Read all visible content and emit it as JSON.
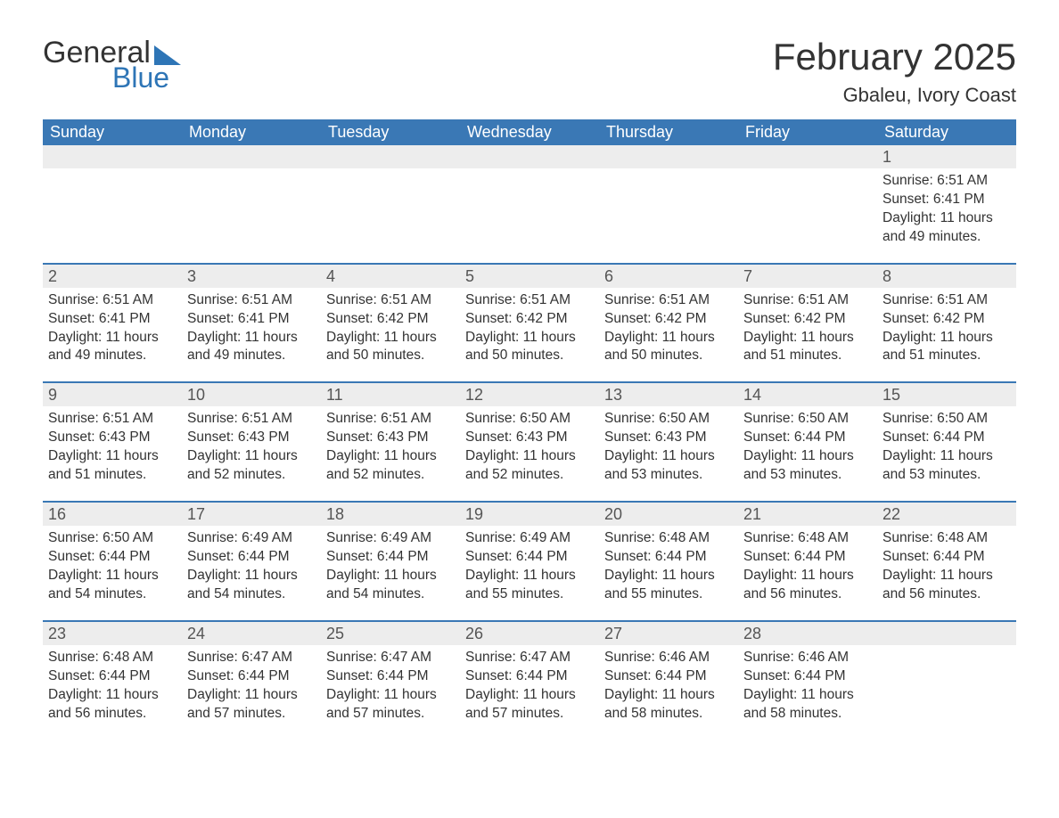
{
  "brand": {
    "word1": "General",
    "word2": "Blue"
  },
  "title": "February 2025",
  "location": "Gbaleu, Ivory Coast",
  "colors": {
    "header_bg": "#3a78b5",
    "header_text": "#ffffff",
    "daynum_bg": "#ededed",
    "accent": "#2e75b6",
    "text": "#333333",
    "page_bg": "#ffffff"
  },
  "typography": {
    "title_fontsize": 42,
    "location_fontsize": 22,
    "header_fontsize": 18,
    "daynum_fontsize": 18,
    "body_fontsize": 15.5
  },
  "layout": {
    "columns": 7,
    "first_day_index": 6
  },
  "day_names": [
    "Sunday",
    "Monday",
    "Tuesday",
    "Wednesday",
    "Thursday",
    "Friday",
    "Saturday"
  ],
  "weeks": [
    [
      {
        "empty": true
      },
      {
        "empty": true
      },
      {
        "empty": true
      },
      {
        "empty": true
      },
      {
        "empty": true
      },
      {
        "empty": true
      },
      {
        "day": "1",
        "sunrise": "Sunrise: 6:51 AM",
        "sunset": "Sunset: 6:41 PM",
        "daylight": "Daylight: 11 hours and 49 minutes."
      }
    ],
    [
      {
        "day": "2",
        "sunrise": "Sunrise: 6:51 AM",
        "sunset": "Sunset: 6:41 PM",
        "daylight": "Daylight: 11 hours and 49 minutes."
      },
      {
        "day": "3",
        "sunrise": "Sunrise: 6:51 AM",
        "sunset": "Sunset: 6:41 PM",
        "daylight": "Daylight: 11 hours and 49 minutes."
      },
      {
        "day": "4",
        "sunrise": "Sunrise: 6:51 AM",
        "sunset": "Sunset: 6:42 PM",
        "daylight": "Daylight: 11 hours and 50 minutes."
      },
      {
        "day": "5",
        "sunrise": "Sunrise: 6:51 AM",
        "sunset": "Sunset: 6:42 PM",
        "daylight": "Daylight: 11 hours and 50 minutes."
      },
      {
        "day": "6",
        "sunrise": "Sunrise: 6:51 AM",
        "sunset": "Sunset: 6:42 PM",
        "daylight": "Daylight: 11 hours and 50 minutes."
      },
      {
        "day": "7",
        "sunrise": "Sunrise: 6:51 AM",
        "sunset": "Sunset: 6:42 PM",
        "daylight": "Daylight: 11 hours and 51 minutes."
      },
      {
        "day": "8",
        "sunrise": "Sunrise: 6:51 AM",
        "sunset": "Sunset: 6:42 PM",
        "daylight": "Daylight: 11 hours and 51 minutes."
      }
    ],
    [
      {
        "day": "9",
        "sunrise": "Sunrise: 6:51 AM",
        "sunset": "Sunset: 6:43 PM",
        "daylight": "Daylight: 11 hours and 51 minutes."
      },
      {
        "day": "10",
        "sunrise": "Sunrise: 6:51 AM",
        "sunset": "Sunset: 6:43 PM",
        "daylight": "Daylight: 11 hours and 52 minutes."
      },
      {
        "day": "11",
        "sunrise": "Sunrise: 6:51 AM",
        "sunset": "Sunset: 6:43 PM",
        "daylight": "Daylight: 11 hours and 52 minutes."
      },
      {
        "day": "12",
        "sunrise": "Sunrise: 6:50 AM",
        "sunset": "Sunset: 6:43 PM",
        "daylight": "Daylight: 11 hours and 52 minutes."
      },
      {
        "day": "13",
        "sunrise": "Sunrise: 6:50 AM",
        "sunset": "Sunset: 6:43 PM",
        "daylight": "Daylight: 11 hours and 53 minutes."
      },
      {
        "day": "14",
        "sunrise": "Sunrise: 6:50 AM",
        "sunset": "Sunset: 6:44 PM",
        "daylight": "Daylight: 11 hours and 53 minutes."
      },
      {
        "day": "15",
        "sunrise": "Sunrise: 6:50 AM",
        "sunset": "Sunset: 6:44 PM",
        "daylight": "Daylight: 11 hours and 53 minutes."
      }
    ],
    [
      {
        "day": "16",
        "sunrise": "Sunrise: 6:50 AM",
        "sunset": "Sunset: 6:44 PM",
        "daylight": "Daylight: 11 hours and 54 minutes."
      },
      {
        "day": "17",
        "sunrise": "Sunrise: 6:49 AM",
        "sunset": "Sunset: 6:44 PM",
        "daylight": "Daylight: 11 hours and 54 minutes."
      },
      {
        "day": "18",
        "sunrise": "Sunrise: 6:49 AM",
        "sunset": "Sunset: 6:44 PM",
        "daylight": "Daylight: 11 hours and 54 minutes."
      },
      {
        "day": "19",
        "sunrise": "Sunrise: 6:49 AM",
        "sunset": "Sunset: 6:44 PM",
        "daylight": "Daylight: 11 hours and 55 minutes."
      },
      {
        "day": "20",
        "sunrise": "Sunrise: 6:48 AM",
        "sunset": "Sunset: 6:44 PM",
        "daylight": "Daylight: 11 hours and 55 minutes."
      },
      {
        "day": "21",
        "sunrise": "Sunrise: 6:48 AM",
        "sunset": "Sunset: 6:44 PM",
        "daylight": "Daylight: 11 hours and 56 minutes."
      },
      {
        "day": "22",
        "sunrise": "Sunrise: 6:48 AM",
        "sunset": "Sunset: 6:44 PM",
        "daylight": "Daylight: 11 hours and 56 minutes."
      }
    ],
    [
      {
        "day": "23",
        "sunrise": "Sunrise: 6:48 AM",
        "sunset": "Sunset: 6:44 PM",
        "daylight": "Daylight: 11 hours and 56 minutes."
      },
      {
        "day": "24",
        "sunrise": "Sunrise: 6:47 AM",
        "sunset": "Sunset: 6:44 PM",
        "daylight": "Daylight: 11 hours and 57 minutes."
      },
      {
        "day": "25",
        "sunrise": "Sunrise: 6:47 AM",
        "sunset": "Sunset: 6:44 PM",
        "daylight": "Daylight: 11 hours and 57 minutes."
      },
      {
        "day": "26",
        "sunrise": "Sunrise: 6:47 AM",
        "sunset": "Sunset: 6:44 PM",
        "daylight": "Daylight: 11 hours and 57 minutes."
      },
      {
        "day": "27",
        "sunrise": "Sunrise: 6:46 AM",
        "sunset": "Sunset: 6:44 PM",
        "daylight": "Daylight: 11 hours and 58 minutes."
      },
      {
        "day": "28",
        "sunrise": "Sunrise: 6:46 AM",
        "sunset": "Sunset: 6:44 PM",
        "daylight": "Daylight: 11 hours and 58 minutes."
      },
      {
        "empty": true
      }
    ]
  ]
}
